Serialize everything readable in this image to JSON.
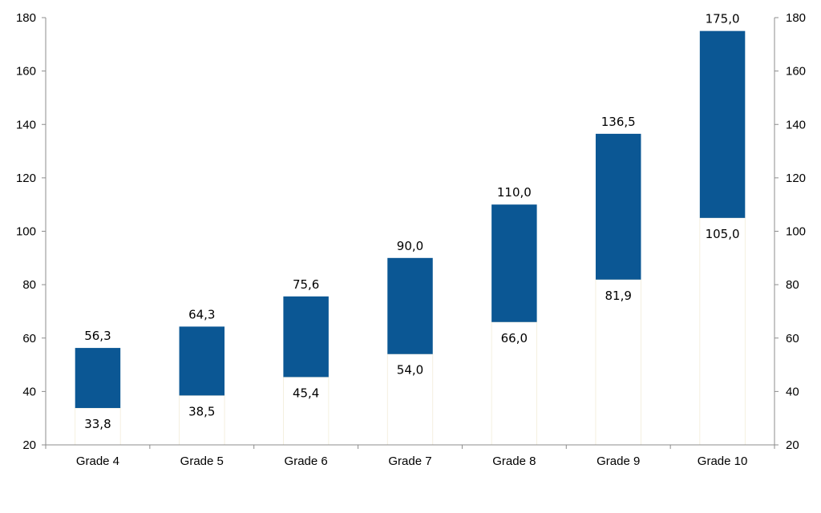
{
  "chart_data": {
    "type": "bar",
    "subtype": "floating-range",
    "title": "",
    "xlabel": "",
    "ylabel": "",
    "ylim": [
      20,
      180
    ],
    "yticks": [
      20,
      40,
      60,
      80,
      100,
      120,
      140,
      160,
      180
    ],
    "ytick_labels": [
      "20",
      "40",
      "60",
      "80",
      "100",
      "120",
      "140",
      "160",
      "180"
    ],
    "secondary_axis": true,
    "grid": false,
    "legend": "none",
    "categories": [
      "Grade 4",
      "Grade 5",
      "Grade 6",
      "Grade 7",
      "Grade 8",
      "Grade 9",
      "Grade 10"
    ],
    "low": [
      33.8,
      38.5,
      45.4,
      54.0,
      66.0,
      81.9,
      105.0
    ],
    "high": [
      56.3,
      64.3,
      75.6,
      90.0,
      110.0,
      136.5,
      175.0
    ],
    "low_labels": [
      "33,8",
      "38,5",
      "45,4",
      "54,0",
      "66,0",
      "81,9",
      "105,0"
    ],
    "high_labels": [
      "56,3",
      "64,3",
      "75,6",
      "90,0",
      "110,0",
      "136,5",
      "175,0"
    ],
    "colors": {
      "bar": "#0b5794",
      "axis": "#8c8c8c",
      "base_outline": "#f2ecd8"
    }
  }
}
